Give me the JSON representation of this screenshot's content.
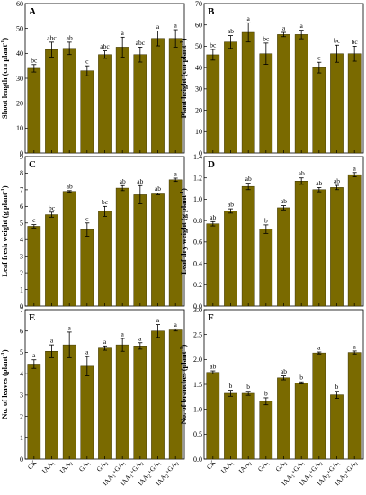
{
  "bar_color": "#7a6a00",
  "categories": [
    {
      "base": "CK",
      "sub": ""
    },
    {
      "base": "IAA",
      "sub": "1"
    },
    {
      "base": "IAA",
      "sub": "2"
    },
    {
      "base": "GA",
      "sub": "1"
    },
    {
      "base": "GA",
      "sub": "2"
    },
    {
      "base": "IAA",
      "sub": "1",
      "plus": "+GA",
      "sub2": "1"
    },
    {
      "base": "IAA",
      "sub": "1",
      "plus": "+GA",
      "sub2": "2"
    },
    {
      "base": "IAA",
      "sub": "2",
      "plus": "+GA",
      "sub2": "1"
    },
    {
      "base": "IAA",
      "sub": "2",
      "plus": "+GA",
      "sub2": "2"
    }
  ],
  "chart_data": [
    {
      "type": "bar",
      "panel": "A",
      "ylabel_main": "Shoot length (cm plant",
      "ylabel_sup": "-1",
      "ylabel_end": ")",
      "ylim": [
        0,
        60
      ],
      "yticks": [
        0,
        10,
        20,
        30,
        40,
        50,
        60
      ],
      "values": [
        34,
        41.5,
        42,
        33,
        39.5,
        42.5,
        39.5,
        46,
        46
      ],
      "errors": [
        1.5,
        3,
        2.5,
        2,
        1.5,
        4,
        3,
        3,
        3.5
      ],
      "letters": [
        "bc",
        "abc",
        "ab",
        "c",
        "abc",
        "a",
        "abc",
        "a",
        "a"
      ]
    },
    {
      "type": "bar",
      "panel": "B",
      "ylabel_main": "Plant height (cm plant",
      "ylabel_sup": "-1",
      "ylabel_end": ")",
      "ylim": [
        0,
        70
      ],
      "yticks": [
        0,
        10,
        20,
        30,
        40,
        50,
        60,
        70
      ],
      "values": [
        46,
        52,
        56.5,
        46.5,
        55.5,
        55.5,
        40,
        46.5,
        46.5
      ],
      "errors": [
        2.5,
        3,
        4.5,
        5,
        1,
        2,
        2.5,
        4,
        3.5
      ],
      "letters": [
        "bc",
        "ab",
        "a",
        "bc",
        "a",
        "a",
        "c",
        "bc",
        "bc"
      ]
    },
    {
      "type": "bar",
      "panel": "C",
      "ylabel_main": "Leaf fresh weight (g plant",
      "ylabel_sup": "-1",
      "ylabel_end": ")",
      "ylim": [
        0,
        9
      ],
      "yticks": [
        0,
        1,
        2,
        3,
        4,
        5,
        6,
        7,
        8,
        9
      ],
      "values": [
        4.8,
        5.5,
        6.9,
        4.6,
        5.7,
        7.1,
        6.7,
        6.75,
        7.6
      ],
      "errors": [
        0.1,
        0.15,
        0.05,
        0.4,
        0.3,
        0.15,
        0.55,
        0.05,
        0.1
      ],
      "letters": [
        "c",
        "bc",
        "ab",
        "c",
        "bc",
        "ab",
        "ab",
        "ab",
        "a"
      ]
    },
    {
      "type": "bar",
      "panel": "D",
      "ylabel_main": "Leaf dry weight (g plant",
      "ylabel_sup": "-1",
      "ylabel_end": ")",
      "ylim": [
        0,
        1.4
      ],
      "yticks": [
        0,
        0.2,
        0.4,
        0.6,
        0.8,
        1.0,
        1.2,
        1.4
      ],
      "ytick_labels": [
        "0.0",
        "0.2",
        "0.4",
        "0.6",
        "0.8",
        "1.0",
        "1.2",
        "1.4"
      ],
      "values": [
        0.77,
        0.89,
        1.12,
        0.72,
        0.92,
        1.17,
        1.09,
        1.11,
        1.23
      ],
      "errors": [
        0.02,
        0.02,
        0.03,
        0.04,
        0.02,
        0.03,
        0.02,
        0.02,
        0.02
      ],
      "letters": [
        "ab",
        "ab",
        "ab",
        "b",
        "ab",
        "ab",
        "ab",
        "ab",
        "a"
      ]
    },
    {
      "type": "bar",
      "panel": "E",
      "ylabel_main": "No. of leaves (plant",
      "ylabel_sup": "-1",
      "ylabel_end": ")",
      "ylim": [
        0,
        7
      ],
      "yticks": [
        0,
        1,
        2,
        3,
        4,
        5,
        6,
        7
      ],
      "values": [
        4.45,
        5.05,
        5.35,
        4.35,
        5.2,
        5.35,
        5.3,
        6.0,
        6.05
      ],
      "errors": [
        0.2,
        0.3,
        0.6,
        0.45,
        0.1,
        0.3,
        0.15,
        0.3,
        0.05
      ],
      "letters": [
        "a",
        "a",
        "a",
        "a",
        "a",
        "a",
        "a",
        "a",
        "a"
      ]
    },
    {
      "type": "bar",
      "panel": "F",
      "ylabel_main": "No. of branches (plant",
      "ylabel_sup": "-1",
      "ylabel_end": ")",
      "ylim": [
        0,
        3.0
      ],
      "yticks": [
        0,
        0.5,
        1.0,
        1.5,
        2.0,
        2.5,
        3.0
      ],
      "ytick_labels": [
        "0.0",
        "0.5",
        "1.0",
        "1.5",
        "2.0",
        "2.5",
        "3.0"
      ],
      "values": [
        1.74,
        1.32,
        1.32,
        1.16,
        1.63,
        1.53,
        2.13,
        1.29,
        2.14
      ],
      "errors": [
        0.03,
        0.06,
        0.04,
        0.07,
        0.04,
        0.02,
        0.02,
        0.07,
        0.03
      ],
      "letters": [
        "ab",
        "b",
        "b",
        "b",
        "ab",
        "b",
        "a",
        "b",
        "a"
      ]
    }
  ]
}
